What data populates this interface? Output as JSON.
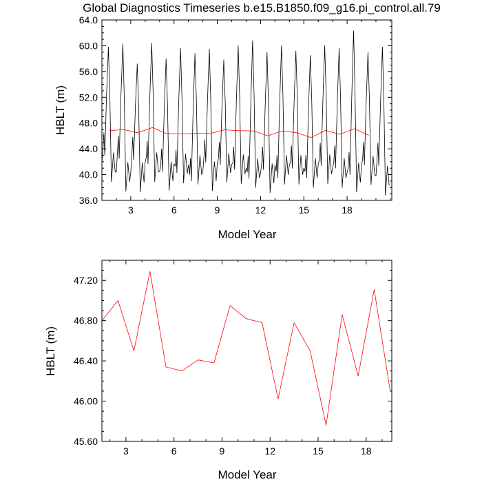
{
  "chart_data": [
    {
      "type": "line",
      "title": "Global Diagnostics Timeseries b.e15.B1850.f09_g16.pi_control.all.79",
      "xlabel": "Model Year",
      "ylabel": "HBLT (m)",
      "xlim": [
        1,
        21.1
      ],
      "ylim": [
        36.0,
        64.0
      ],
      "xticks": [
        3,
        6,
        9,
        12,
        15,
        18
      ],
      "yticks": [
        "36.0",
        "40.0",
        "44.0",
        "48.0",
        "52.0",
        "56.0",
        "60.0",
        "64.0"
      ],
      "grid": false,
      "series": [
        {
          "color": "#000000",
          "peaks": [
            59.8,
            60.3,
            57.2,
            60.4,
            58.0,
            59.6,
            58.8,
            59.5,
            57.8,
            60.0,
            60.8,
            59.0,
            60.0,
            59.2,
            58.5,
            60.0,
            59.6,
            62.3,
            59.0,
            59.8
          ],
          "troughs": [
            38.9,
            37.4,
            37.3,
            38.9,
            37.5,
            38.7,
            38.5,
            37.5,
            38.8,
            38.6,
            38.0,
            37.2,
            38.5,
            38.5,
            38.0,
            38.6,
            38.0,
            37.3,
            38.4,
            36.8
          ],
          "secondary_peaks": [
            46.5,
            46.0,
            45.8,
            45.2,
            44.0,
            43.8,
            42.5,
            45.4,
            45.0,
            44.3,
            42.9,
            44.3,
            43.0,
            44.5,
            43.0,
            44.9,
            44.5,
            43.5,
            45.0,
            44.9
          ]
        },
        {
          "color": "#ff0000",
          "x": [
            1.5,
            2.5,
            3.5,
            4.5,
            5.5,
            6.5,
            7.5,
            8.5,
            9.5,
            10.5,
            11.5,
            12.5,
            13.5,
            14.5,
            15.5,
            16.5,
            17.5,
            18.5,
            19.5
          ],
          "y": [
            46.8,
            47.0,
            46.5,
            47.3,
            46.34,
            46.3,
            46.41,
            46.38,
            46.95,
            46.82,
            46.78,
            46.02,
            46.78,
            46.5,
            45.76,
            46.86,
            46.25,
            47.11,
            46.1
          ]
        }
      ]
    },
    {
      "type": "line",
      "xlabel": "Model Year",
      "ylabel": "HBLT (m)",
      "xlim": [
        1.5,
        19.6
      ],
      "ylim": [
        45.6,
        47.4
      ],
      "xticks": [
        3,
        6,
        9,
        12,
        15,
        18
      ],
      "yticks": [
        "45.60",
        "46.00",
        "46.40",
        "46.80",
        "47.20"
      ],
      "grid": false,
      "series": [
        {
          "color": "#ff0000",
          "x": [
            1.5,
            2.5,
            3.5,
            4.5,
            5.5,
            6.5,
            7.5,
            8.5,
            9.5,
            10.5,
            11.5,
            12.5,
            13.5,
            14.5,
            15.5,
            16.5,
            17.5,
            18.5,
            19.5
          ],
          "y": [
            46.8,
            47.0,
            46.5,
            47.29,
            46.34,
            46.3,
            46.41,
            46.38,
            46.95,
            46.82,
            46.78,
            46.02,
            46.78,
            46.5,
            45.76,
            46.86,
            46.25,
            47.11,
            46.1
          ]
        }
      ]
    }
  ]
}
